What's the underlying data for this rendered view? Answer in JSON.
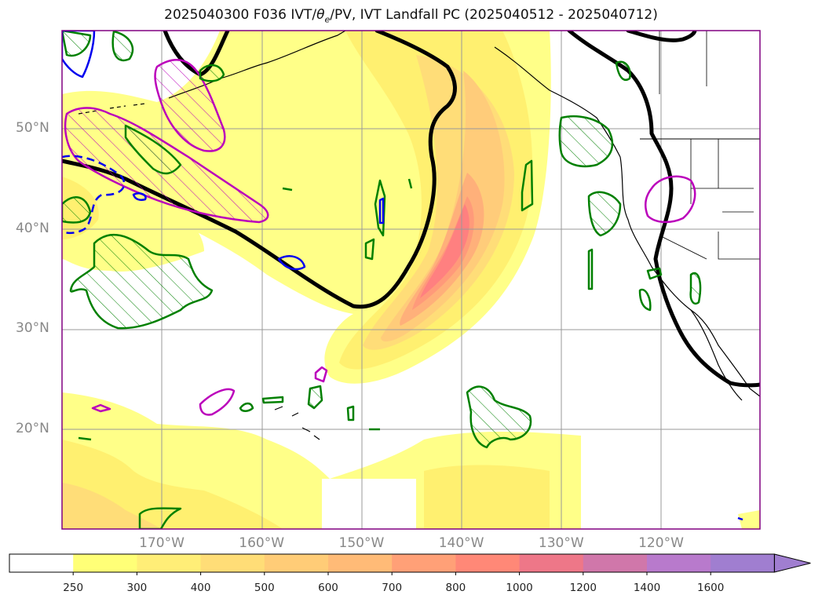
{
  "title_prefix": "2025040300 F036 IVT/",
  "title_theta": "θ",
  "title_theta_sub": "e",
  "title_suffix": "/PV, IVT Landfall PC (2025040512 - 2025040712)",
  "lat_labels": [
    {
      "value": 50,
      "text": "50°N"
    },
    {
      "value": 40,
      "text": "40°N"
    },
    {
      "value": 30,
      "text": "30°N"
    },
    {
      "value": 20,
      "text": "20°N"
    }
  ],
  "lon_labels": [
    {
      "value": -170,
      "text": "170°W"
    },
    {
      "value": -160,
      "text": "160°W"
    },
    {
      "value": -150,
      "text": "150°W"
    },
    {
      "value": -140,
      "text": "140°W"
    },
    {
      "value": -130,
      "text": "130°W"
    },
    {
      "value": -120,
      "text": "120°W"
    }
  ],
  "colorbar": {
    "levels": [
      "250",
      "300",
      "400",
      "500",
      "600",
      "700",
      "800",
      "1000",
      "1200",
      "1400",
      "1600"
    ],
    "colors": [
      "#ffffff",
      "#ffff77",
      "#ffee77",
      "#ffdd77",
      "#ffcc77",
      "#ffbb77",
      "#ffa077",
      "#ff8877",
      "#ee7788",
      "#d077aa",
      "#b87acc",
      "#a07ed0"
    ]
  },
  "colors": {
    "ivt_250": "#ffff88",
    "ivt_300": "#fff070",
    "ivt_400": "#ffdd78",
    "ivt_500": "#ffcc7a",
    "ivt_600": "#ffb07a",
    "ivt_700": "#ff9a7a",
    "ivt_800": "#ff8080",
    "theta_contour": "#000000",
    "pv_positive": "#008000",
    "pv_magenta": "#bb00bb",
    "pv_negative": "#0000ee",
    "coast": "#000000"
  }
}
